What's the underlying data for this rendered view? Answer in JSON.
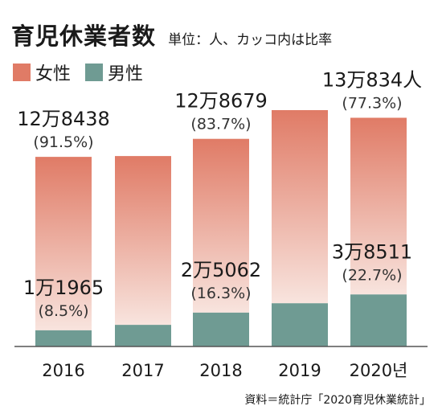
{
  "title": "育児休業者数",
  "unit_note": "単位：人、カッコ内は比率",
  "legend": [
    {
      "label": "女性",
      "color": "#e07b66"
    },
    {
      "label": "男性",
      "color": "#6f9b93"
    }
  ],
  "source": "資料＝統計庁「2020育児休業統計」",
  "chart_data": {
    "type": "bar",
    "stacked": true,
    "categories": [
      "2016",
      "2017",
      "2018",
      "2019",
      "2020년"
    ],
    "series": [
      {
        "name": "男性",
        "values": [
          11965,
          16000,
          25062,
          32000,
          38511
        ]
      },
      {
        "name": "女性",
        "values": [
          128438,
          125000,
          128679,
          143000,
          130834
        ]
      }
    ],
    "annotations": [
      {
        "category": "2016",
        "series": "女性",
        "value": "12万8438",
        "pct": "(91.5%)"
      },
      {
        "category": "2016",
        "series": "男性",
        "value": "1万1965",
        "pct": "(8.5%)"
      },
      {
        "category": "2018",
        "series": "女性",
        "value": "12万8679",
        "pct": "(83.7%)"
      },
      {
        "category": "2018",
        "series": "男性",
        "value": "2万5062",
        "pct": "(16.3%)"
      },
      {
        "category": "2020년",
        "series": "女性",
        "value": "13万834人",
        "pct": "(77.3%)"
      },
      {
        "category": "2020년",
        "series": "男性",
        "value": "3万8511",
        "pct": "(22.7%)"
      }
    ],
    "colors": {
      "female_top": "#e07b66",
      "female_bottom": "#f8e4de",
      "male": "#6f9b93",
      "axis": "#555555"
    }
  }
}
